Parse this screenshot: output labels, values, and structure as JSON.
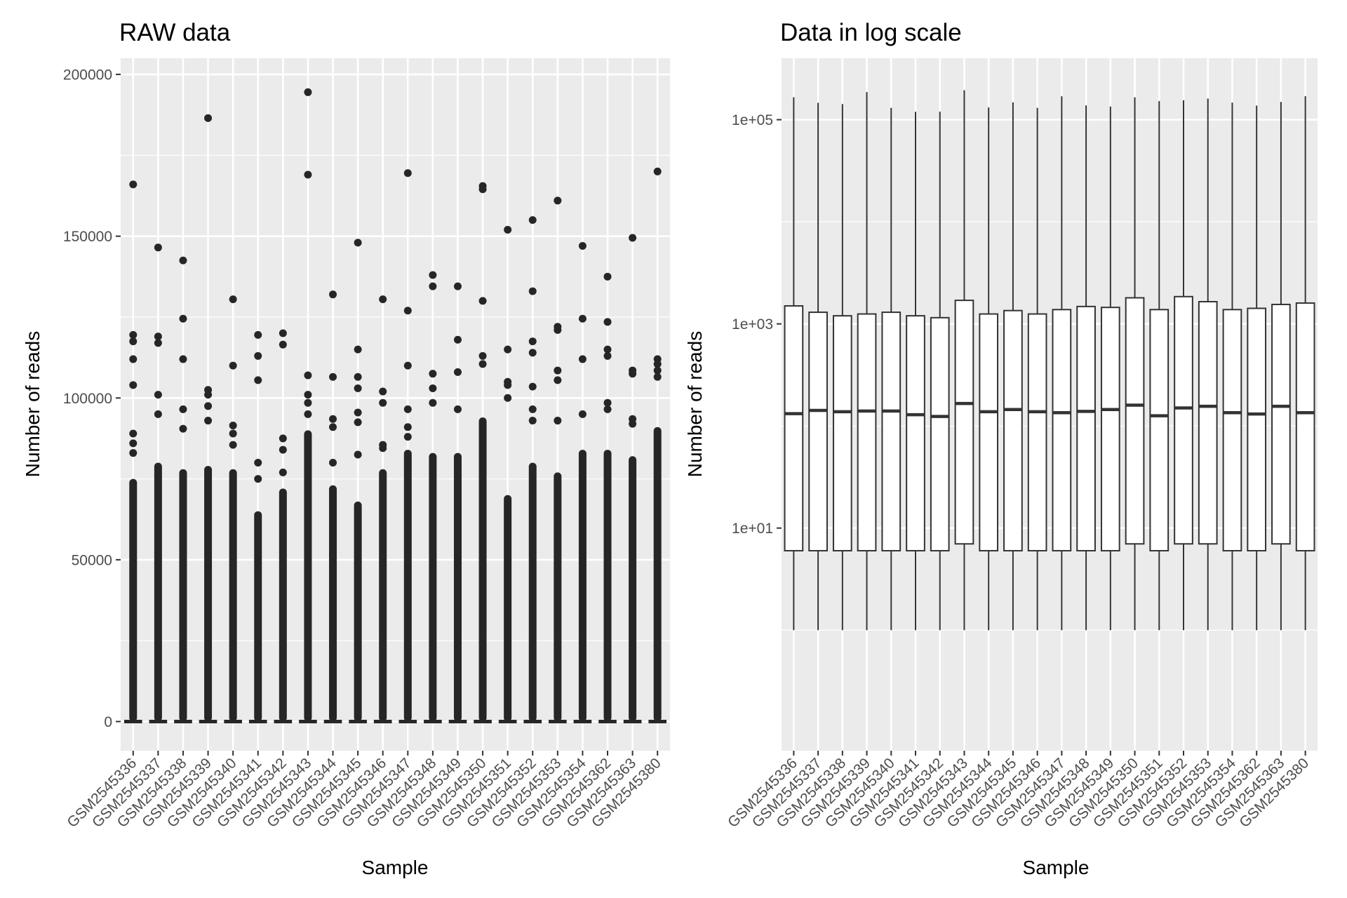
{
  "chart_data": [
    {
      "type": "box",
      "title": "RAW data",
      "xlabel": "Sample",
      "ylabel": "Number of reads",
      "y_scale": "linear",
      "ylim": [
        -9000,
        205000
      ],
      "y_ticks": [
        0,
        50000,
        100000,
        150000,
        200000
      ],
      "y_tick_labels": [
        "0",
        "50000",
        "100000",
        "150000",
        "200000"
      ],
      "grid": true,
      "legend": "none",
      "categories": [
        "GSM2545336",
        "GSM2545337",
        "GSM2545338",
        "GSM2545339",
        "GSM2545340",
        "GSM2545341",
        "GSM2545342",
        "GSM2545343",
        "GSM2545344",
        "GSM2545345",
        "GSM2545346",
        "GSM2545347",
        "GSM2545348",
        "GSM2545349",
        "GSM2545350",
        "GSM2545351",
        "GSM2545352",
        "GSM2545353",
        "GSM2545354",
        "GSM2545362",
        "GSM2545363",
        "GSM2545380"
      ],
      "outlier_dense_top": [
        75000,
        80000,
        78000,
        79000,
        78000,
        65000,
        72000,
        90000,
        73000,
        68000,
        78000,
        84000,
        83000,
        83000,
        94000,
        70000,
        80000,
        77000,
        84000,
        84000,
        82000,
        91000
      ],
      "outliers": [
        [
          166000,
          119500,
          117500,
          112000,
          104000,
          89000,
          86000,
          83000
        ],
        [
          146500,
          119000,
          117000,
          101000,
          95000
        ],
        [
          142500,
          124500,
          112000,
          96500,
          90500
        ],
        [
          186500,
          102500,
          101000,
          97500,
          93000
        ],
        [
          130500,
          110000,
          91500,
          89000,
          85500
        ],
        [
          119500,
          113000,
          105500,
          80000,
          75000
        ],
        [
          120000,
          116500,
          87500,
          84000,
          77000
        ],
        [
          194500,
          169000,
          107000,
          101000,
          98500,
          95000
        ],
        [
          132000,
          106500,
          93500,
          91000,
          80000
        ],
        [
          148000,
          115000,
          106500,
          103000,
          95500,
          92500,
          82500
        ],
        [
          130500,
          102000,
          98500,
          85500,
          84500
        ],
        [
          169500,
          127000,
          110000,
          96500,
          91000,
          88000
        ],
        [
          138000,
          134500,
          107500,
          103000,
          98500
        ],
        [
          134500,
          118000,
          108000,
          96500
        ],
        [
          165500,
          164500,
          130000,
          113000,
          110500
        ],
        [
          152000,
          115000,
          105000,
          104000,
          100000
        ],
        [
          155000,
          133000,
          117500,
          114000,
          103500,
          96500,
          93000
        ],
        [
          161000,
          122000,
          121000,
          108500,
          105500,
          93000
        ],
        [
          147000,
          124500,
          112000,
          95000
        ],
        [
          137500,
          123500,
          115000,
          113000,
          98500,
          96500
        ],
        [
          149500,
          108500,
          107500,
          93500,
          92000
        ],
        [
          170000,
          112000,
          110500,
          108500,
          106500
        ]
      ]
    },
    {
      "type": "box",
      "title": "Data in log scale",
      "xlabel": "Sample",
      "ylabel": "Number of reads",
      "y_scale": "log10",
      "ylim": [
        0.066,
        400000
      ],
      "y_ticks": [
        10,
        1000,
        100000
      ],
      "y_tick_labels": [
        "1e+01",
        "1e+03",
        "1e+05"
      ],
      "grid": true,
      "legend": "none",
      "categories": [
        "GSM2545336",
        "GSM2545337",
        "GSM2545338",
        "GSM2545339",
        "GSM2545340",
        "GSM2545341",
        "GSM2545342",
        "GSM2545343",
        "GSM2545344",
        "GSM2545345",
        "GSM2545346",
        "GSM2545347",
        "GSM2545348",
        "GSM2545349",
        "GSM2545350",
        "GSM2545351",
        "GSM2545352",
        "GSM2545353",
        "GSM2545354",
        "GSM2545362",
        "GSM2545363",
        "GSM2545380"
      ],
      "whisker_low": [
        1,
        1,
        1,
        1,
        1,
        1,
        1,
        1,
        1,
        1,
        1,
        1,
        1,
        1,
        1,
        1,
        1,
        1,
        1,
        1,
        1,
        1
      ],
      "q1": [
        6,
        6,
        6,
        6,
        6,
        6,
        6,
        7,
        6,
        6,
        6,
        6,
        6,
        6,
        7,
        6,
        7,
        7,
        6,
        6,
        7,
        6
      ],
      "median": [
        132,
        142,
        138,
        140,
        140,
        129,
        124,
        166,
        138,
        145,
        138,
        135,
        139,
        145,
        160,
        126,
        150,
        156,
        135,
        131,
        156,
        135
      ],
      "q3": [
        1500,
        1300,
        1200,
        1250,
        1300,
        1200,
        1150,
        1700,
        1250,
        1350,
        1250,
        1380,
        1480,
        1450,
        1800,
        1380,
        1850,
        1650,
        1380,
        1420,
        1550,
        1600
      ],
      "whisker_high": [
        166000,
        146500,
        142500,
        186500,
        130500,
        119500,
        120000,
        194500,
        132000,
        148000,
        130500,
        169500,
        138000,
        134500,
        165500,
        152000,
        155000,
        161000,
        147000,
        137500,
        149500,
        170000
      ]
    }
  ]
}
